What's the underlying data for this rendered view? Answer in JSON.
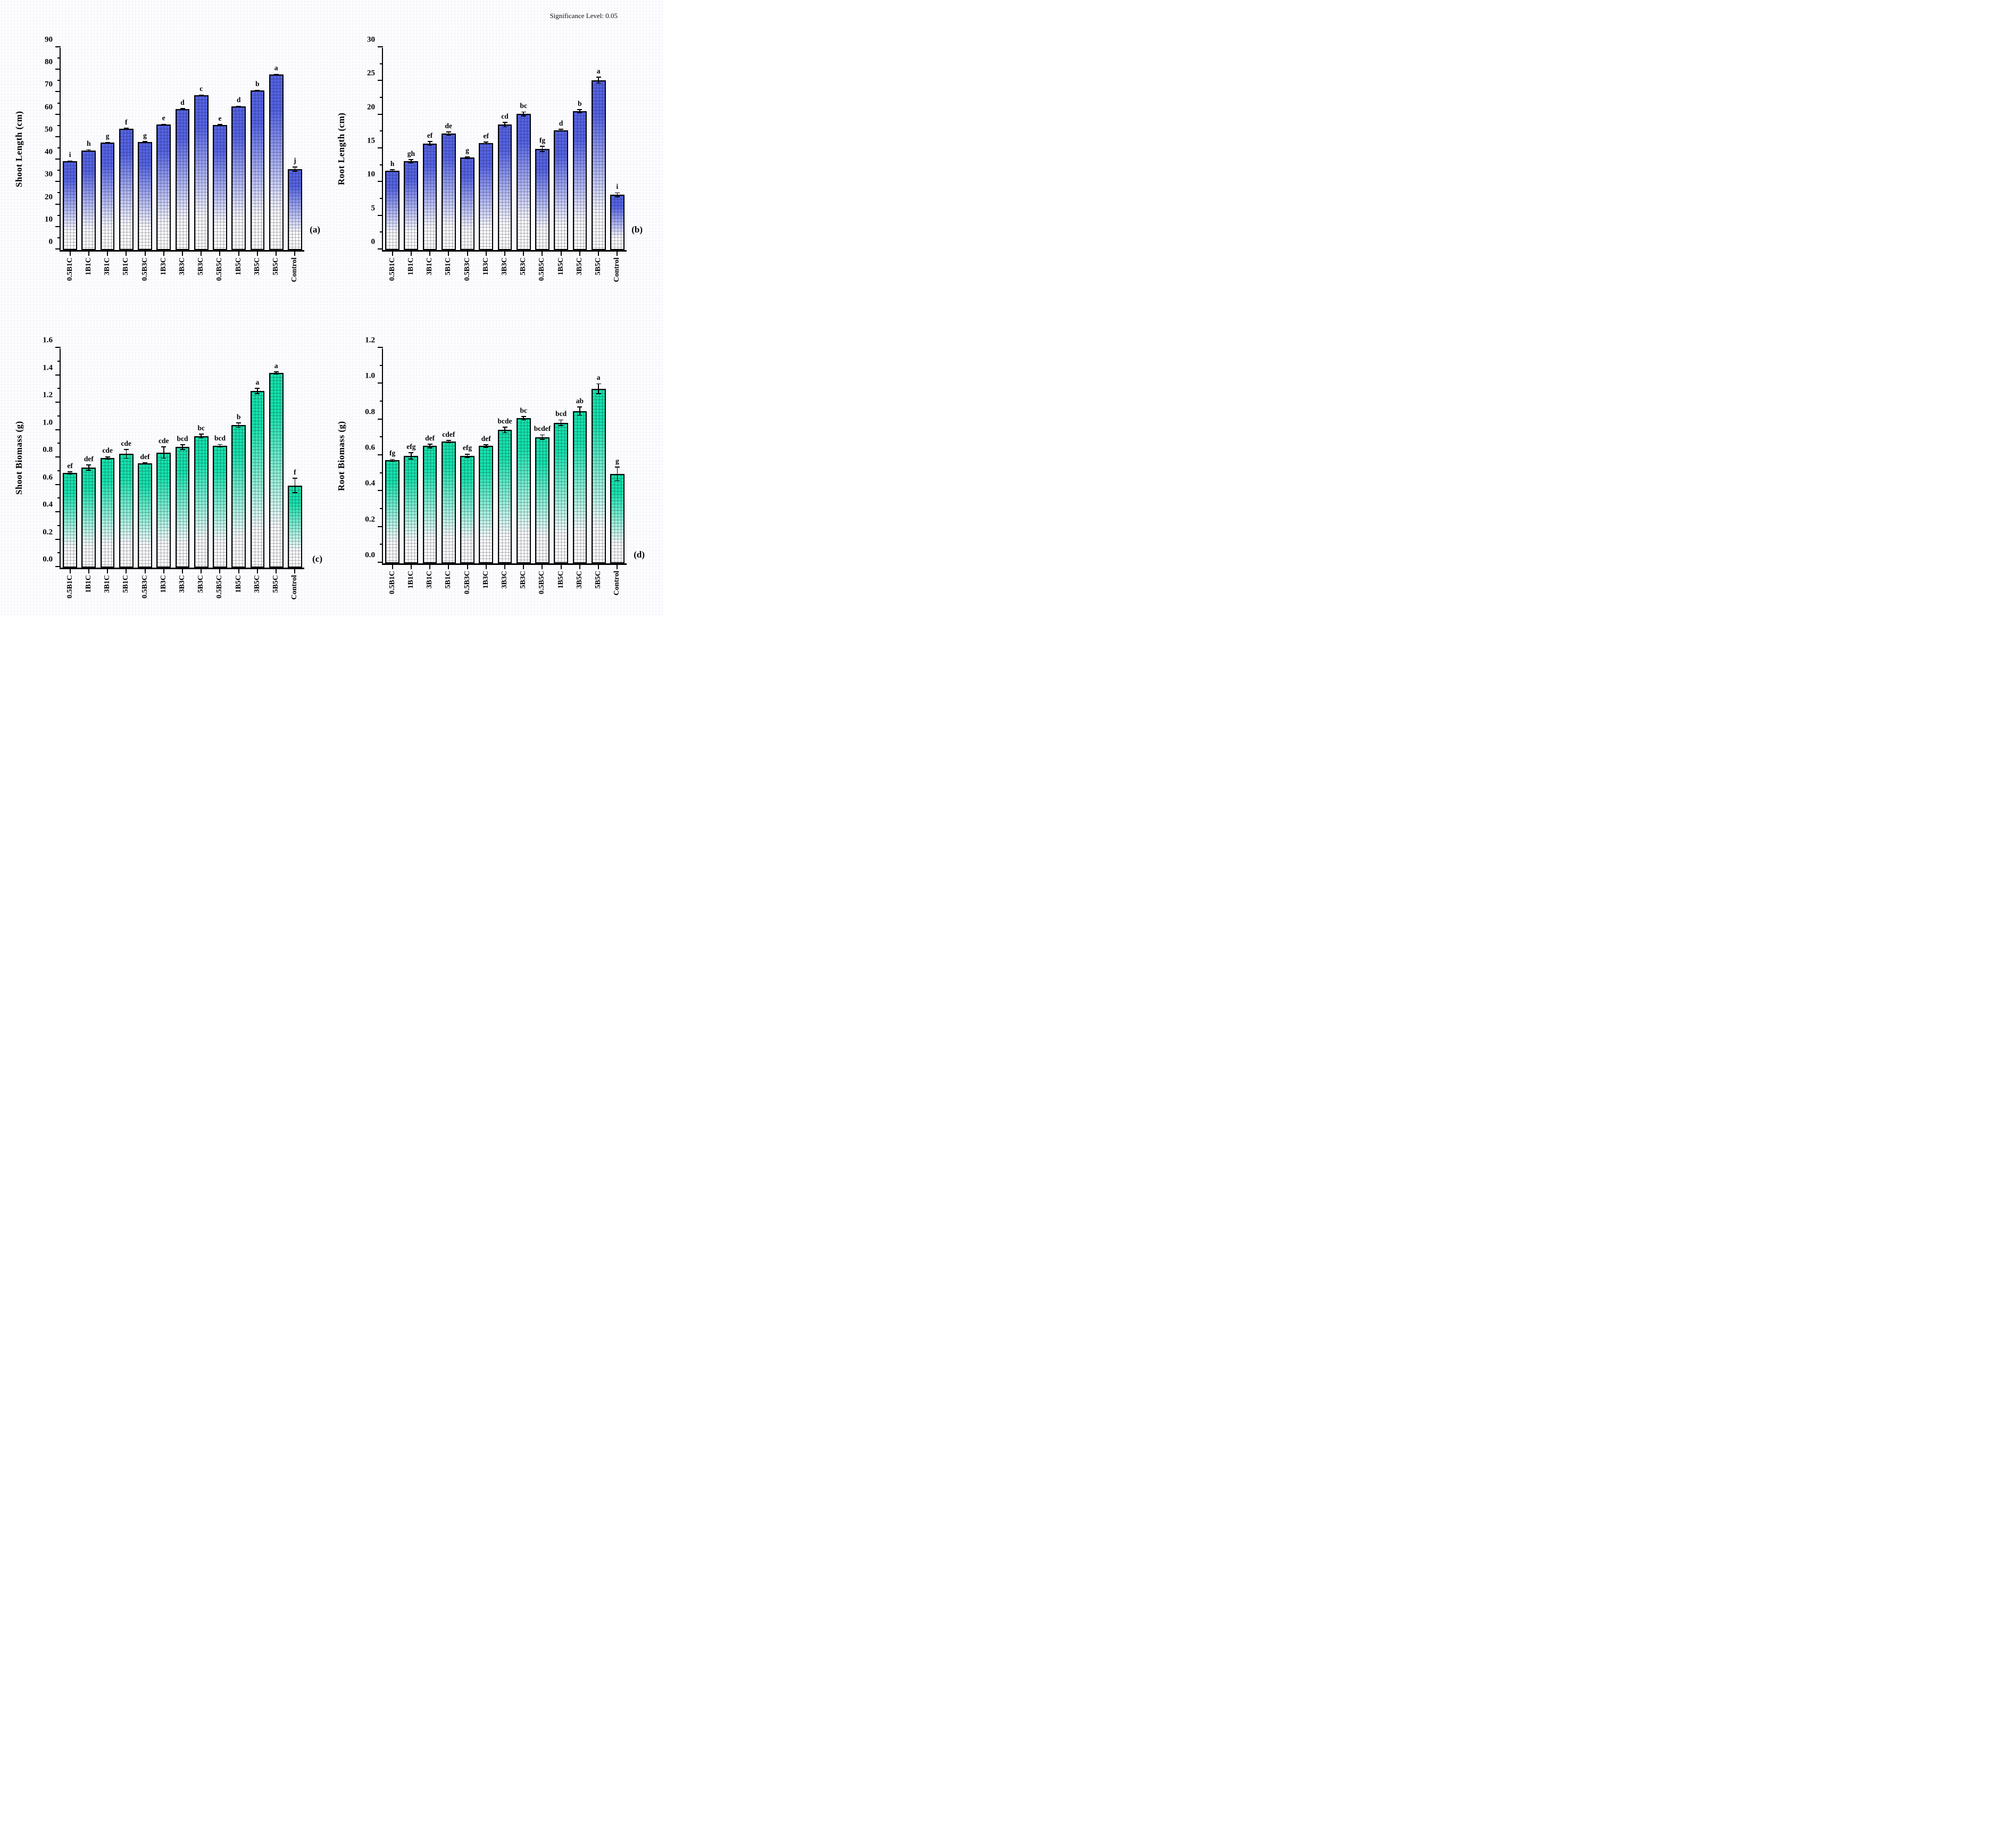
{
  "figure": {
    "significance_note": "Significance Level: 0.05"
  },
  "categories": [
    "0.5B1C",
    "1B1C",
    "3B1C",
    "5B1C",
    "0.5B3C",
    "1B3C",
    "3B3C",
    "5B3C",
    "0.5B5C",
    "1B5C",
    "3B5C",
    "5B5C",
    "Control"
  ],
  "colors": {
    "blue_bar": "#5463e4",
    "green_bar": "#14e2ab",
    "axis": "#000000"
  },
  "chart_data": [
    {
      "type": "bar",
      "panel_label": "(a)",
      "ylabel": "Shoot Length (cm)",
      "xlabel": "",
      "ylim": [
        0,
        90
      ],
      "tick_step": 10,
      "minor_step": 5,
      "tick_decimals": 0,
      "grid": false,
      "bar_color": "#5463e4",
      "categories": [
        "0.5B1C",
        "1B1C",
        "3B1C",
        "5B1C",
        "0.5B3C",
        "1B3C",
        "3B3C",
        "5B3C",
        "0.5B5C",
        "1B5C",
        "3B5C",
        "5B5C",
        "Control"
      ],
      "values": [
        39.6,
        44.4,
        47.8,
        54.1,
        48.0,
        55.9,
        62.8,
        68.9,
        55.7,
        64.0,
        71.0,
        78.1,
        36.0
      ],
      "errors": [
        0.3,
        0.4,
        0.4,
        0.3,
        0.5,
        0.3,
        0.4,
        0.3,
        0.4,
        0.3,
        0.3,
        0.4,
        1.2
      ],
      "letters": [
        "i",
        "h",
        "g",
        "f",
        "g",
        "e",
        "d",
        "c",
        "e",
        "d",
        "b",
        "a",
        "j"
      ]
    },
    {
      "type": "bar",
      "panel_label": "(b)",
      "ylabel": "Root Length (cm)",
      "xlabel": "",
      "ylim": [
        0,
        30
      ],
      "tick_step": 5,
      "minor_step": 2.5,
      "tick_decimals": 0,
      "grid": false,
      "bar_color": "#5463e4",
      "categories": [
        "0.5B1C",
        "1B1C",
        "3B1C",
        "5B1C",
        "0.5B3C",
        "1B3C",
        "3B3C",
        "5B3C",
        "0.5B5C",
        "1B5C",
        "3B5C",
        "5B5C",
        "Control"
      ],
      "values": [
        11.8,
        13.2,
        15.8,
        17.3,
        13.7,
        15.9,
        18.6,
        20.2,
        15.0,
        17.8,
        20.6,
        25.2,
        8.2
      ],
      "errors": [
        0.2,
        0.3,
        0.35,
        0.3,
        0.2,
        0.2,
        0.4,
        0.35,
        0.45,
        0.2,
        0.3,
        0.5,
        0.35
      ],
      "letters": [
        "h",
        "gh",
        "ef",
        "de",
        "g",
        "ef",
        "cd",
        "bc",
        "fg",
        "d",
        "b",
        "a",
        "i"
      ]
    },
    {
      "type": "bar",
      "panel_label": "(c)",
      "ylabel": "Shoot Biomass (g)",
      "xlabel": "",
      "ylim": [
        0,
        1.6
      ],
      "tick_step": 0.2,
      "minor_step": 0.1,
      "tick_decimals": 1,
      "grid": false,
      "bar_color": "#14e2ab",
      "categories": [
        "0.5B1C",
        "1B1C",
        "3B1C",
        "5B1C",
        "0.5B3C",
        "1B3C",
        "3B3C",
        "5B3C",
        "0.5B5C",
        "1B5C",
        "3B5C",
        "5B5C",
        "Control"
      ],
      "values": [
        0.69,
        0.73,
        0.8,
        0.83,
        0.76,
        0.84,
        0.88,
        0.96,
        0.89,
        1.04,
        1.29,
        1.42,
        0.6
      ],
      "errors": [
        0.012,
        0.022,
        0.012,
        0.035,
        0.008,
        0.045,
        0.02,
        0.018,
        0.012,
        0.02,
        0.022,
        0.012,
        0.055
      ],
      "letters": [
        "ef",
        "def",
        "cde",
        "cde",
        "def",
        "cde",
        "bcd",
        "bc",
        "bcd",
        "b",
        "a",
        "a",
        "f"
      ]
    },
    {
      "type": "bar",
      "panel_label": "(d)",
      "ylabel": "Root Biomass (g)",
      "xlabel": "",
      "ylim": [
        0,
        1.2
      ],
      "tick_step": 0.2,
      "minor_step": 0.1,
      "tick_decimals": 1,
      "grid": false,
      "bar_color": "#14e2ab",
      "categories": [
        "0.5B1C",
        "1B1C",
        "3B1C",
        "5B1C",
        "0.5B3C",
        "1B3C",
        "3B3C",
        "5B3C",
        "0.5B5C",
        "1B5C",
        "3B5C",
        "5B5C",
        "Control"
      ],
      "values": [
        0.575,
        0.6,
        0.655,
        0.68,
        0.6,
        0.655,
        0.745,
        0.81,
        0.705,
        0.785,
        0.85,
        0.975,
        0.5
      ],
      "errors": [
        0.008,
        0.02,
        0.012,
        0.008,
        0.012,
        0.01,
        0.018,
        0.012,
        0.015,
        0.018,
        0.025,
        0.03,
        0.04
      ],
      "letters": [
        "fg",
        "efg",
        "def",
        "cdef",
        "efg",
        "def",
        "bcde",
        "bc",
        "bcdef",
        "bcd",
        "ab",
        "a",
        "g"
      ]
    }
  ]
}
